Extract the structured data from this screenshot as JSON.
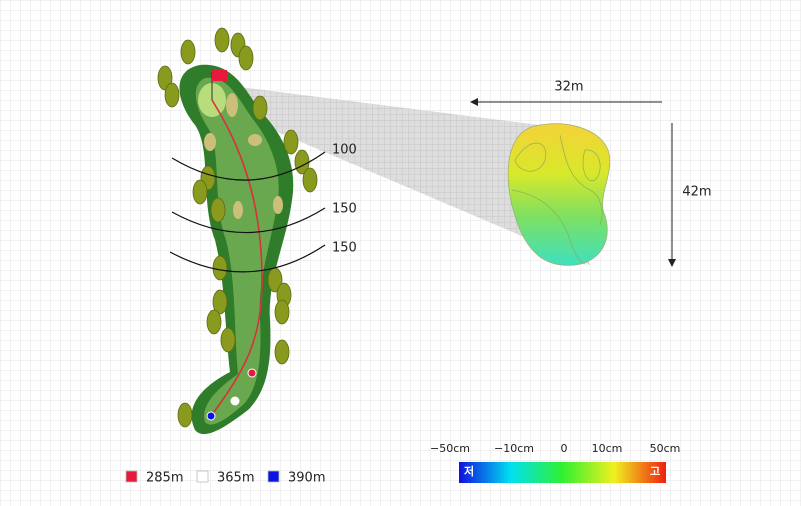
{
  "distance_markers": [
    "100",
    "150",
    "150"
  ],
  "green_dimensions": {
    "width": "32m",
    "height": "42m"
  },
  "tee_legend": [
    {
      "label": "285m",
      "color": "#e8193c"
    },
    {
      "label": "365m",
      "color": "#ffffff"
    },
    {
      "label": "390m",
      "color": "#0a14e6"
    }
  ],
  "elevation_scale": {
    "ticks": [
      "−50cm",
      "−10cm",
      "0",
      "10cm",
      "50cm"
    ],
    "low": "저",
    "high": "고"
  }
}
